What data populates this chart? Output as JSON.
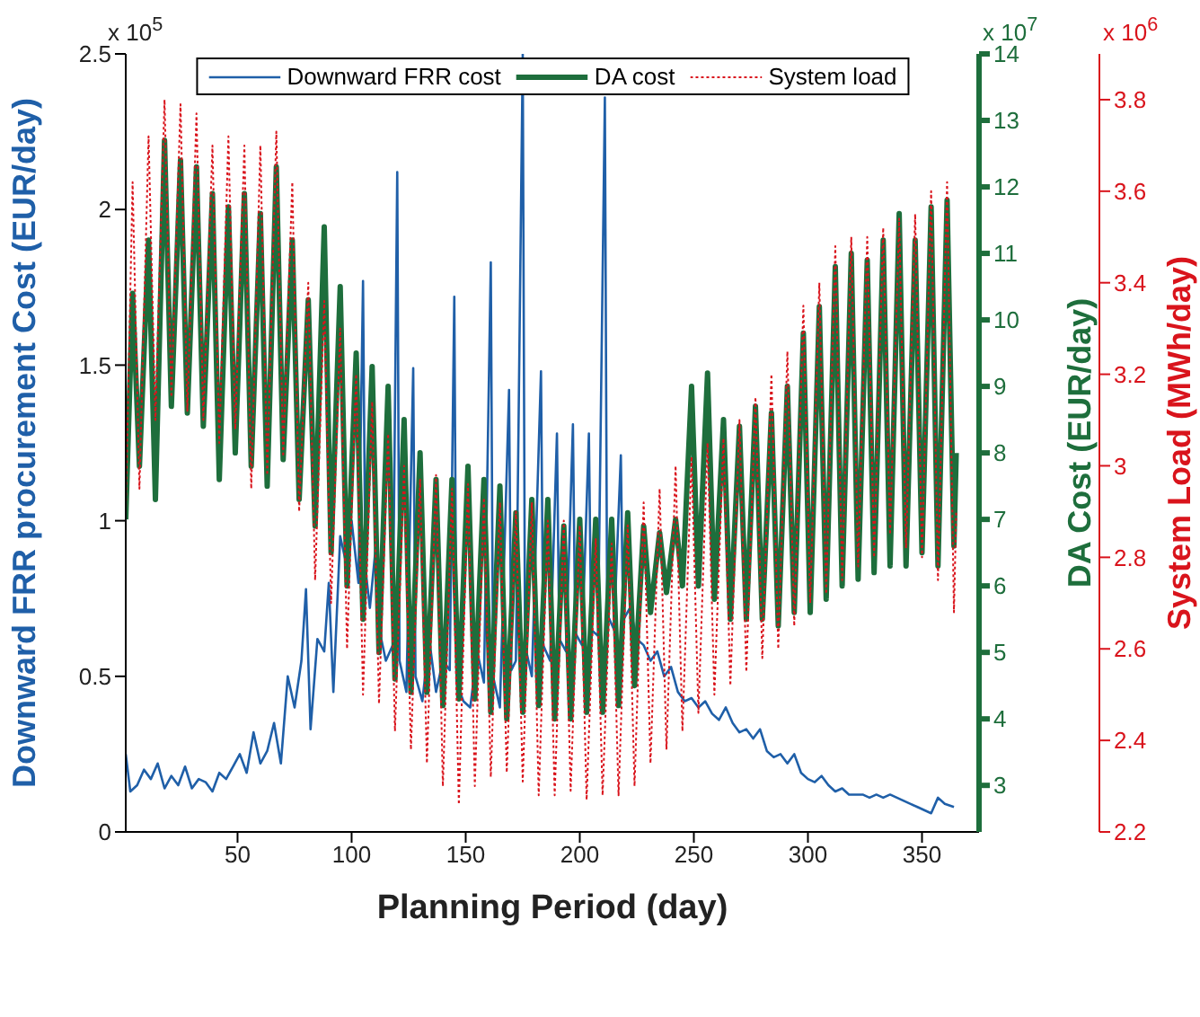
{
  "chart_data": {
    "type": "line",
    "xlabel": "Planning Period (day)",
    "ylabel": "Downward FRR procurement Cost (EUR/day)",
    "y2label": "DA Cost (EUR/day)",
    "y3label": "System Load (MWh/day)",
    "xlim": [
      1,
      375
    ],
    "xticks": [
      50,
      100,
      150,
      200,
      250,
      300,
      350
    ],
    "ylim": [
      0,
      2.5
    ],
    "yticks": [
      0,
      0.5,
      1,
      1.5,
      2,
      2.5
    ],
    "y2lim": [
      2.3,
      14
    ],
    "y2ticks": [
      3,
      4,
      5,
      6,
      7,
      8,
      9,
      10,
      11,
      12,
      13,
      14
    ],
    "y3lim": [
      2.2,
      3.9
    ],
    "y3ticks": [
      2.2,
      2.4,
      2.6,
      2.8,
      3,
      3.2,
      3.4,
      3.6,
      3.8
    ],
    "annotations": [
      "x 10$^{5}$",
      "x 10$^{7}$",
      "x 10$^{6}$"
    ],
    "legend": "top",
    "marker": "none",
    "series": [
      {
        "name": "Downward FRR cost",
        "color": "#1f5fa8",
        "line_style": "solid",
        "axis": "y",
        "x": [
          1,
          3,
          6,
          9,
          12,
          15,
          18,
          21,
          24,
          27,
          30,
          33,
          36,
          39,
          42,
          45,
          48,
          51,
          54,
          57,
          60,
          63,
          66,
          69,
          72,
          75,
          78,
          80,
          82,
          85,
          88,
          90,
          92,
          95,
          98,
          100,
          103,
          105,
          106,
          108,
          111,
          113,
          115,
          118,
          120,
          121,
          124,
          127,
          128,
          131,
          134,
          137,
          140,
          143,
          145,
          146,
          149,
          152,
          155,
          158,
          161,
          162,
          165,
          169,
          170,
          172,
          175,
          176,
          179,
          183,
          184,
          187,
          190,
          191,
          194,
          197,
          198,
          201,
          204,
          205,
          208,
          211,
          212,
          215,
          218,
          219,
          222,
          225,
          228,
          231,
          234,
          237,
          240,
          243,
          246,
          249,
          252,
          255,
          258,
          261,
          264,
          267,
          270,
          273,
          276,
          279,
          282,
          285,
          288,
          291,
          294,
          297,
          300,
          303,
          306,
          309,
          312,
          315,
          318,
          321,
          324,
          327,
          330,
          333,
          336,
          339,
          342,
          345,
          348,
          351,
          354,
          357,
          360,
          364
        ],
        "values": [
          0.25,
          0.13,
          0.15,
          0.2,
          0.17,
          0.22,
          0.14,
          0.18,
          0.15,
          0.21,
          0.14,
          0.17,
          0.16,
          0.13,
          0.19,
          0.17,
          0.21,
          0.25,
          0.19,
          0.32,
          0.22,
          0.26,
          0.35,
          0.22,
          0.5,
          0.4,
          0.55,
          0.78,
          0.33,
          0.62,
          0.58,
          0.8,
          0.45,
          0.95,
          0.85,
          1.0,
          0.8,
          1.77,
          0.85,
          0.72,
          0.95,
          0.62,
          0.55,
          0.6,
          2.12,
          0.55,
          0.45,
          1.49,
          0.5,
          0.42,
          0.62,
          0.45,
          0.55,
          0.52,
          1.72,
          0.48,
          0.42,
          0.4,
          0.58,
          0.48,
          1.83,
          0.5,
          0.4,
          1.42,
          0.52,
          0.55,
          2.5,
          0.6,
          0.5,
          1.48,
          0.6,
          0.55,
          1.28,
          0.62,
          0.58,
          1.31,
          0.64,
          0.6,
          1.28,
          0.65,
          0.63,
          2.36,
          0.7,
          0.65,
          1.21,
          0.68,
          0.72,
          0.62,
          0.6,
          0.55,
          0.58,
          0.5,
          0.53,
          0.45,
          0.42,
          0.43,
          0.4,
          0.42,
          0.38,
          0.36,
          0.4,
          0.35,
          0.32,
          0.33,
          0.3,
          0.33,
          0.26,
          0.24,
          0.25,
          0.22,
          0.25,
          0.19,
          0.17,
          0.16,
          0.18,
          0.15,
          0.13,
          0.14,
          0.12,
          0.12,
          0.12,
          0.11,
          0.12,
          0.11,
          0.12,
          0.11,
          0.1,
          0.09,
          0.08,
          0.07,
          0.06,
          0.11,
          0.09,
          0.08
        ]
      },
      {
        "name": "DA cost",
        "color": "#1e6e3c",
        "line_style": "solid",
        "axis": "y2",
        "x": [
          1,
          4,
          7,
          11,
          14,
          18,
          21,
          25,
          28,
          32,
          35,
          39,
          42,
          46,
          49,
          53,
          56,
          60,
          63,
          67,
          70,
          74,
          77,
          81,
          84,
          88,
          91,
          95,
          98,
          102,
          105,
          109,
          112,
          116,
          119,
          123,
          126,
          130,
          133,
          137,
          140,
          144,
          147,
          151,
          154,
          158,
          161,
          165,
          168,
          172,
          175,
          179,
          182,
          186,
          189,
          193,
          196,
          200,
          203,
          207,
          210,
          214,
          217,
          221,
          224,
          228,
          231,
          235,
          238,
          242,
          245,
          249,
          252,
          256,
          259,
          263,
          266,
          270,
          273,
          277,
          280,
          284,
          287,
          291,
          294,
          298,
          301,
          305,
          308,
          312,
          315,
          319,
          322,
          326,
          329,
          333,
          336,
          340,
          343,
          347,
          350,
          354,
          357,
          361,
          364,
          365
        ],
        "values": [
          7.0,
          10.4,
          7.8,
          11.2,
          7.3,
          12.7,
          8.7,
          12.4,
          8.6,
          12.3,
          8.4,
          11.9,
          7.6,
          11.7,
          8.0,
          11.9,
          7.8,
          11.6,
          7.5,
          12.3,
          7.9,
          11.2,
          7.3,
          10.3,
          6.9,
          11.4,
          6.5,
          10.5,
          6.0,
          9.5,
          5.5,
          9.3,
          5.0,
          9.0,
          4.6,
          8.5,
          4.4,
          8.0,
          4.4,
          7.6,
          4.2,
          7.6,
          4.3,
          7.8,
          4.3,
          7.6,
          4.1,
          7.5,
          4.0,
          7.1,
          4.1,
          7.3,
          4.2,
          7.3,
          4.0,
          6.9,
          4.0,
          7.0,
          4.1,
          7.0,
          4.1,
          7.0,
          4.2,
          7.1,
          4.5,
          6.9,
          5.6,
          6.8,
          5.9,
          7.0,
          6.0,
          9.0,
          6.0,
          9.2,
          5.8,
          8.5,
          5.5,
          8.4,
          5.5,
          8.7,
          5.5,
          8.6,
          5.4,
          9.0,
          5.6,
          9.8,
          5.6,
          10.2,
          5.8,
          10.8,
          6.0,
          11.0,
          6.1,
          10.9,
          6.2,
          11.2,
          6.3,
          11.6,
          6.3,
          11.2,
          6.5,
          11.7,
          6.3,
          11.8,
          6.6,
          8.0
        ]
      },
      {
        "name": "System load",
        "color": "#d9141c",
        "line_style": "dotted",
        "axis": "y3",
        "x": [
          1,
          4,
          7,
          11,
          14,
          18,
          21,
          25,
          28,
          32,
          35,
          39,
          42,
          46,
          49,
          53,
          56,
          60,
          63,
          67,
          70,
          74,
          77,
          81,
          84,
          88,
          91,
          95,
          98,
          102,
          105,
          109,
          112,
          116,
          119,
          123,
          126,
          130,
          133,
          137,
          140,
          144,
          147,
          151,
          154,
          158,
          161,
          165,
          168,
          172,
          175,
          179,
          182,
          186,
          189,
          193,
          196,
          200,
          203,
          207,
          210,
          214,
          217,
          221,
          224,
          228,
          231,
          235,
          238,
          242,
          245,
          249,
          252,
          256,
          259,
          263,
          266,
          270,
          273,
          277,
          280,
          284,
          287,
          291,
          294,
          298,
          301,
          305,
          308,
          312,
          315,
          319,
          322,
          326,
          329,
          333,
          336,
          340,
          343,
          347,
          350,
          354,
          357,
          361,
          364,
          365
        ],
        "values": [
          2.9,
          3.62,
          2.95,
          3.72,
          3.1,
          3.8,
          3.15,
          3.79,
          3.12,
          3.77,
          3.1,
          3.7,
          3.05,
          3.72,
          3.08,
          3.7,
          2.95,
          3.7,
          2.98,
          3.73,
          3.02,
          3.62,
          2.9,
          3.4,
          2.75,
          3.36,
          2.7,
          3.3,
          2.6,
          3.2,
          2.5,
          3.14,
          2.48,
          3.07,
          2.42,
          3.0,
          2.38,
          2.97,
          2.35,
          2.98,
          2.3,
          2.95,
          2.26,
          2.96,
          2.3,
          2.93,
          2.32,
          2.92,
          2.33,
          2.9,
          2.31,
          2.92,
          2.28,
          2.88,
          2.28,
          2.88,
          2.29,
          2.87,
          2.27,
          2.84,
          2.28,
          2.83,
          2.28,
          2.87,
          2.3,
          2.92,
          2.35,
          2.95,
          2.38,
          3.0,
          2.42,
          3.02,
          2.46,
          3.05,
          2.5,
          3.06,
          2.52,
          3.1,
          2.55,
          3.15,
          2.58,
          3.2,
          2.6,
          3.25,
          2.65,
          3.35,
          2.7,
          3.4,
          2.72,
          3.48,
          2.75,
          3.5,
          2.78,
          3.5,
          2.8,
          3.52,
          2.85,
          3.54,
          2.82,
          3.55,
          2.8,
          3.6,
          2.75,
          3.62,
          2.68,
          2.9
        ]
      }
    ]
  }
}
